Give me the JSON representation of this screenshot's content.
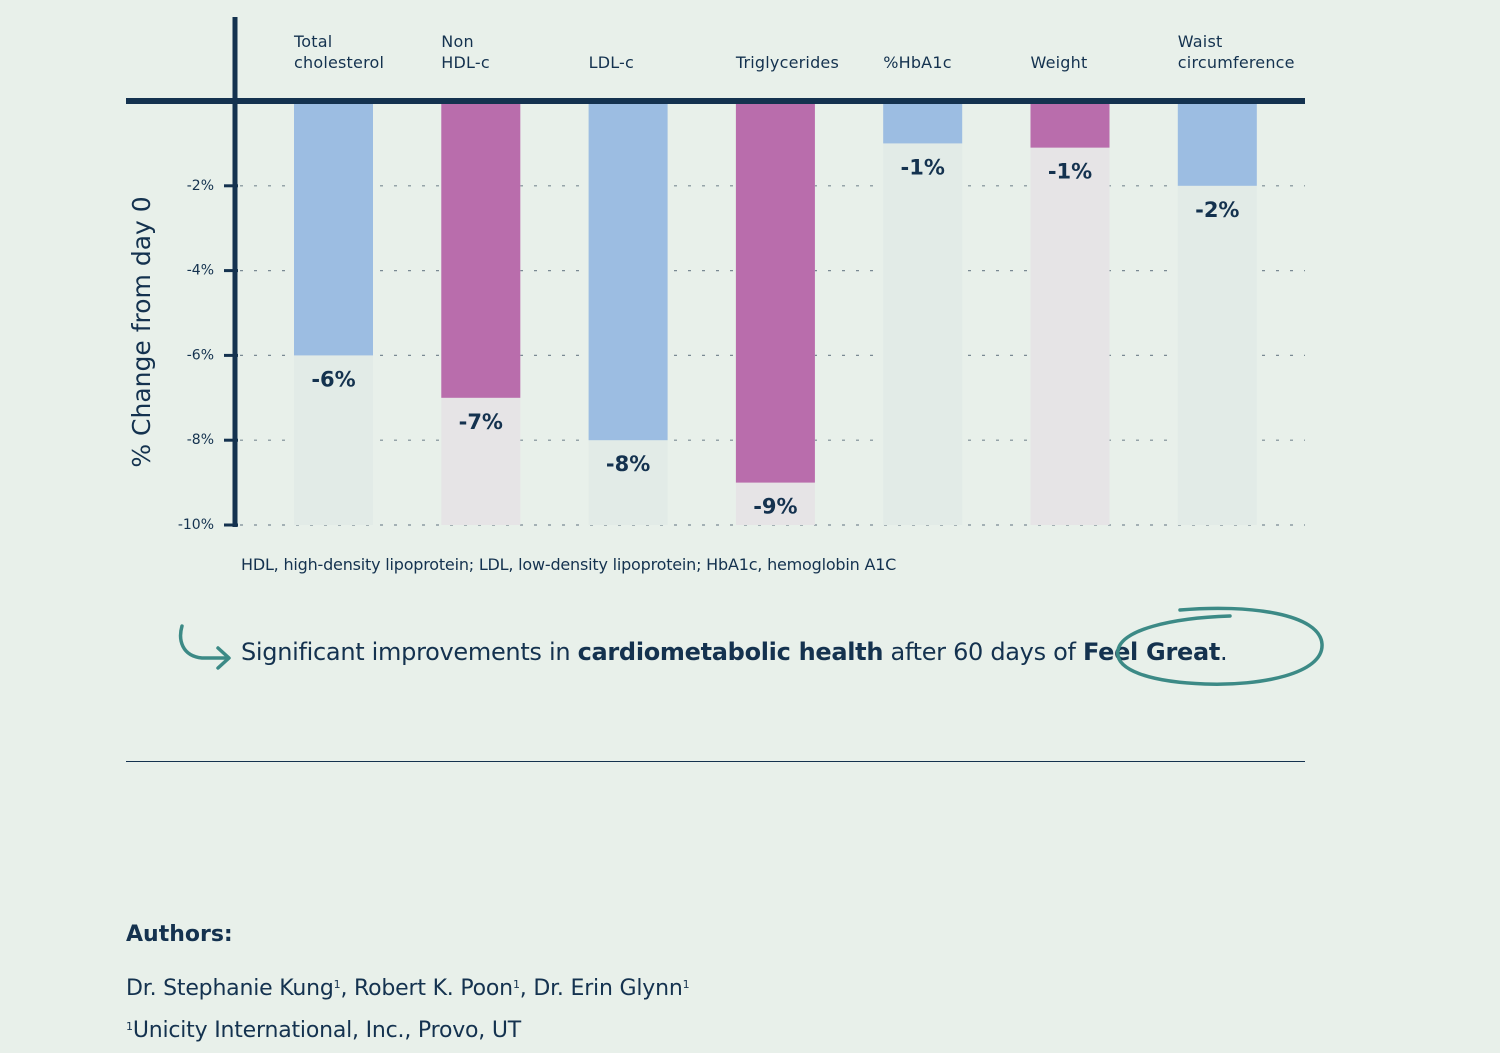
{
  "chart_data": {
    "type": "bar",
    "categories": [
      "Total cholesterol",
      "Non HDL-c",
      "LDL-c",
      "Triglycerides",
      "%HbA1c",
      "Weight",
      "Waist circumference"
    ],
    "category_label_lines": [
      [
        "Total",
        "cholesterol"
      ],
      [
        "Non",
        "HDL-c"
      ],
      [
        "LDL-c"
      ],
      [
        "Triglycerides"
      ],
      [
        "%HbA1c"
      ],
      [
        "Weight"
      ],
      [
        "Waist",
        "circumference"
      ]
    ],
    "values": [
      -6,
      -7,
      -8,
      -9,
      -1,
      -1.1,
      -2
    ],
    "data_labels": [
      "-6%",
      "-7%",
      "-8%",
      "-9%",
      "-1%",
      "-1%",
      "-2%"
    ],
    "bar_colors": [
      "#9cbde2",
      "#b96dac",
      "#9cbde2",
      "#b96dac",
      "#9cbde2",
      "#b96dac",
      "#9cbde2"
    ],
    "track_colors": [
      "#e2ebe7",
      "#e6e4e6",
      "#e2ebe7",
      "#e6e4e6",
      "#e2ebe7",
      "#e6e4e6",
      "#e2ebe7"
    ],
    "ylabel": "% Change from day 0",
    "yticks": [
      -2,
      -4,
      -6,
      -8,
      -10
    ],
    "ytick_labels": [
      "-2%",
      "-4%",
      "-6%",
      "-8%",
      "-10%"
    ],
    "ylim": [
      -10,
      0
    ],
    "grid": "dashed horizontal",
    "axis_color": "#14324f"
  },
  "footnote": "HDL, high-density lipoprotein; LDL, low-density lipoprotein; HbA1c, hemoglobin A1C",
  "headline": {
    "part1": "Significant improvements in ",
    "bold1": "cardiometabolic health",
    "part2": " after 60 days of ",
    "bold2": "Feel Great",
    "end": "."
  },
  "authors": {
    "heading": "Authors:",
    "names": [
      {
        "name": "Dr. Stephanie Kung",
        "sup": "1",
        "sep": ", "
      },
      {
        "name": "Robert K. Poon",
        "sup": "1",
        "sep": ", "
      },
      {
        "name": "Dr. Erin Glynn",
        "sup": "1",
        "sep": ""
      }
    ],
    "affiliation_sup": "1",
    "affiliation": "Unicity International, Inc., Provo, UT"
  },
  "colors": {
    "background": "#e8f0ea",
    "text": "#14324f",
    "accent_teal": "#3c8a86"
  }
}
